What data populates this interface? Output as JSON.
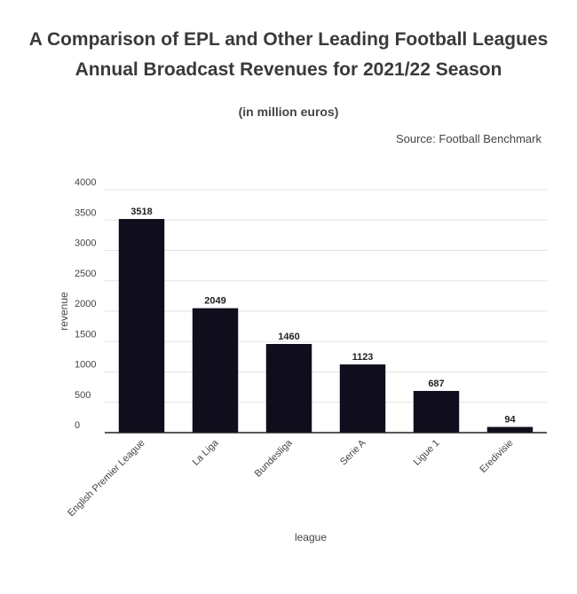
{
  "chart_data": {
    "type": "bar",
    "title": "A Comparison of EPL and Other Leading Football Leagues",
    "title_line2": "Annual Broadcast Revenues for 2021/22 Season",
    "subtitle": "(in million euros)",
    "source": "Source: Football Benchmark",
    "xlabel": "league",
    "ylabel": "revenue",
    "categories": [
      "English Premier League",
      "La Liga",
      "Bundesliga",
      "Serie A",
      "Ligue 1",
      "Eredivisie"
    ],
    "values": [
      3518,
      2049,
      1460,
      1123,
      687,
      94
    ],
    "ylim": [
      0,
      4000
    ],
    "yticks": [
      0,
      500,
      1000,
      1500,
      2000,
      2500,
      3000,
      3500,
      4000
    ],
    "bar_color": "#100d1c",
    "grid": true
  }
}
